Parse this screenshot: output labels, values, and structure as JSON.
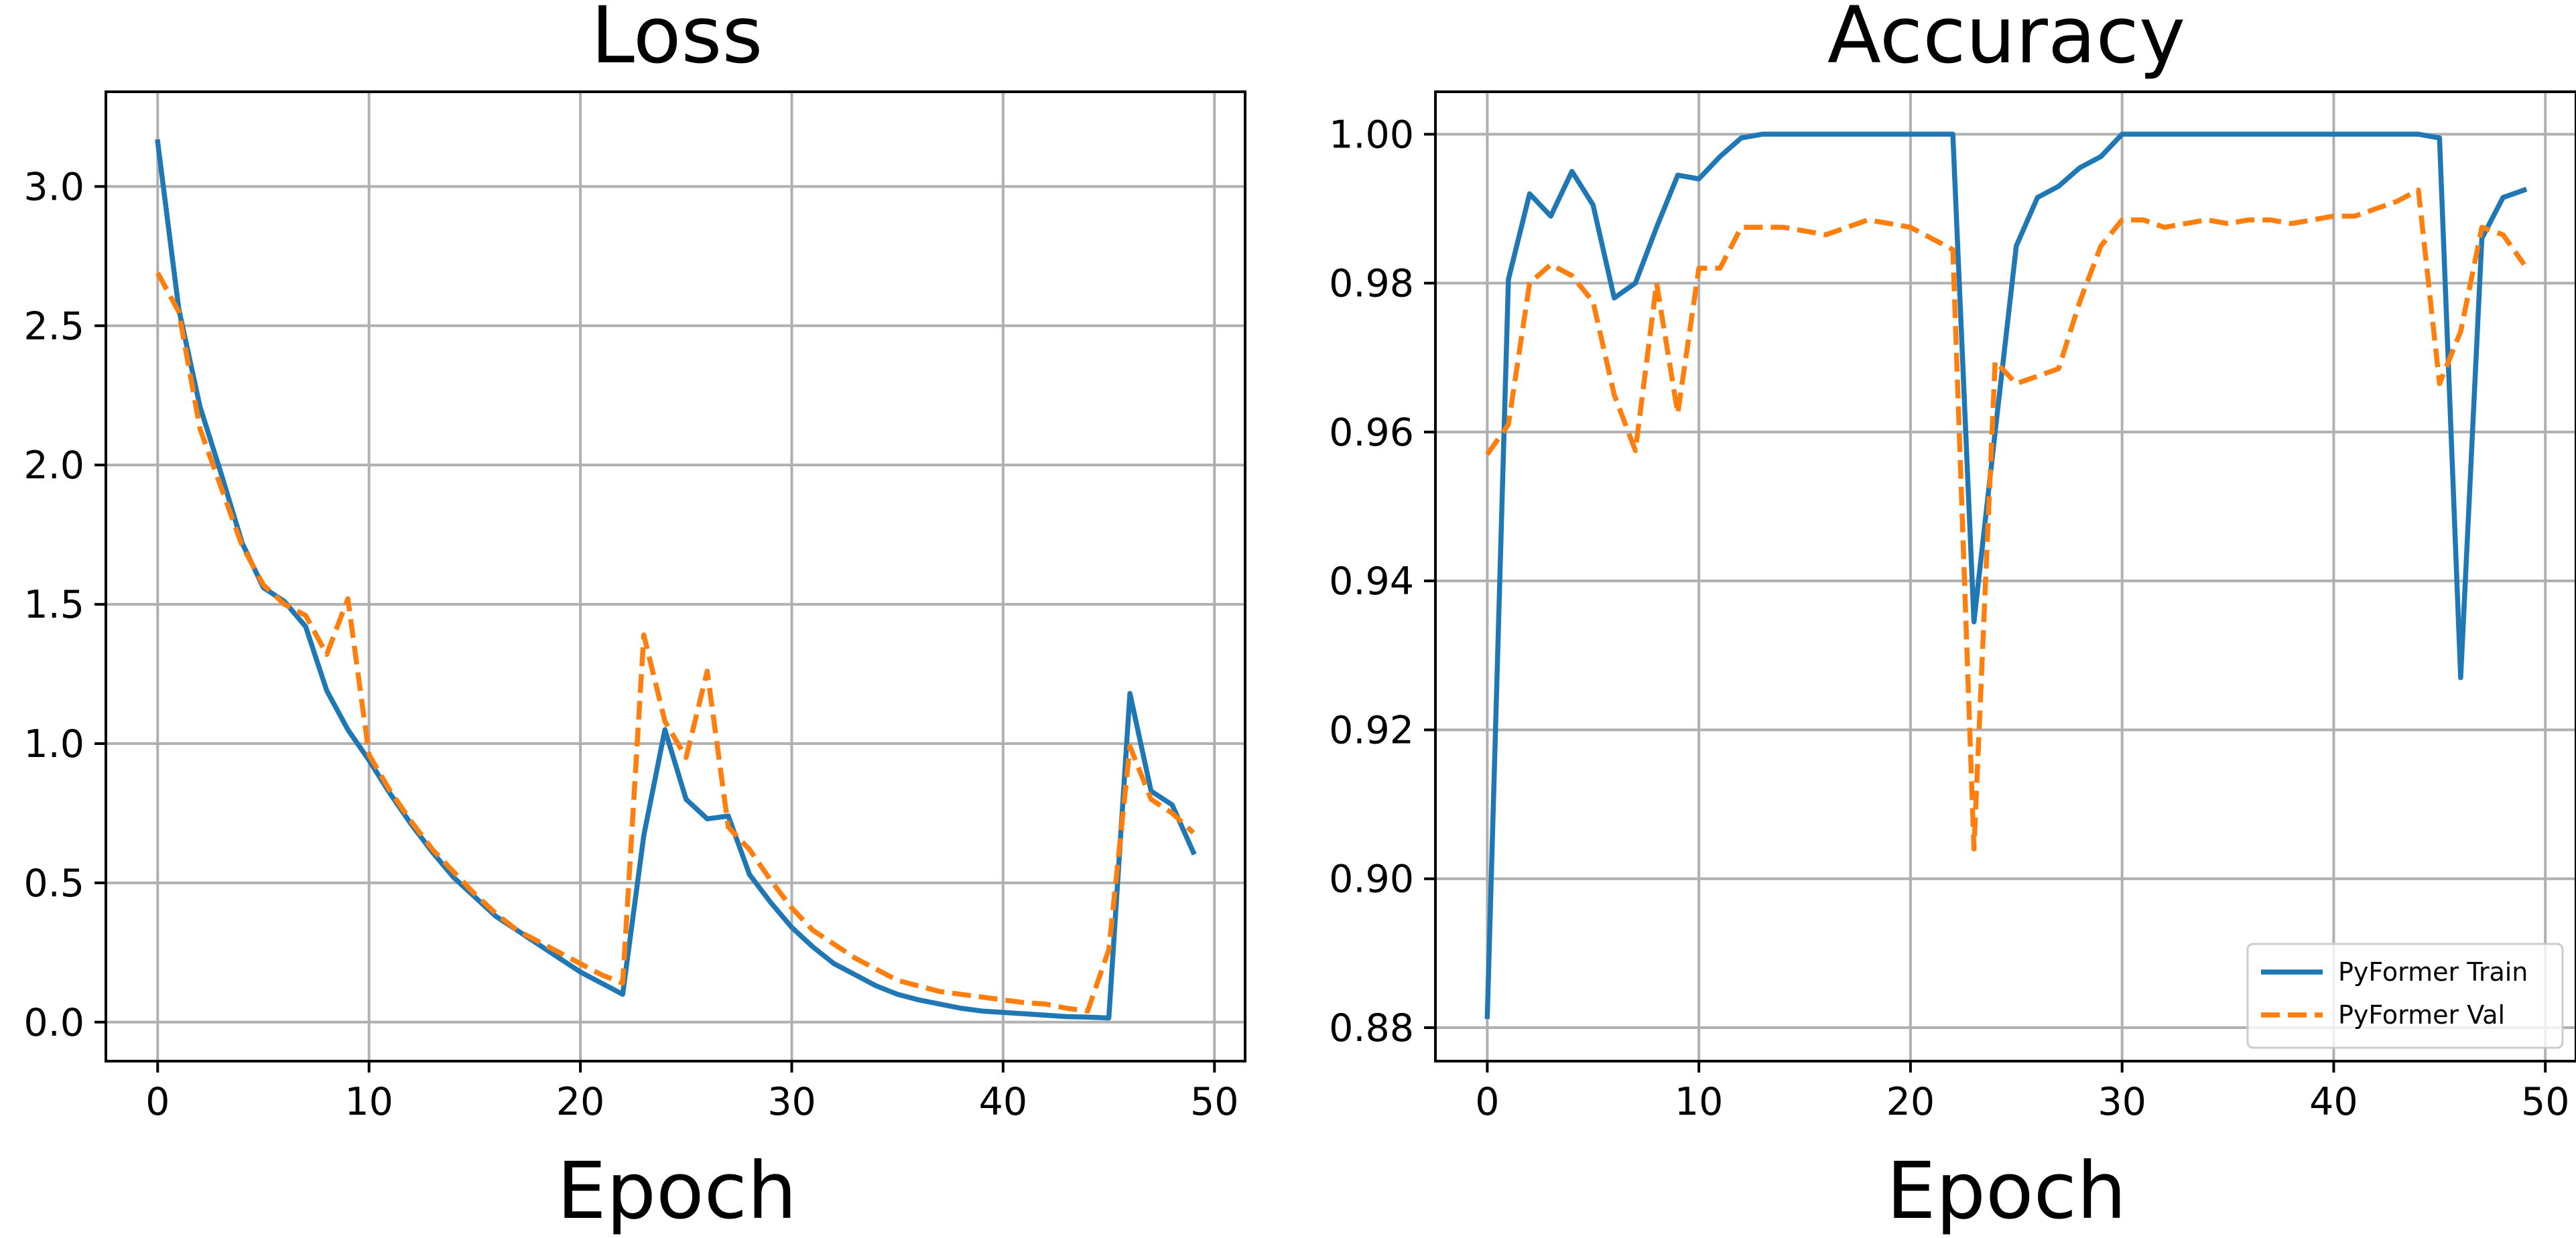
{
  "colors": {
    "train": "#1f77b4",
    "val": "#ff7f0e",
    "grid": "#b0b0b0"
  },
  "chart_data": [
    {
      "type": "line",
      "title": "Loss",
      "xlabel": "Epoch",
      "ylabel": "",
      "xlim": [
        -2.45,
        51.45
      ],
      "ylim": [
        -0.14,
        3.34
      ],
      "xticks": [
        0,
        10,
        20,
        30,
        40,
        50
      ],
      "yticks": [
        0.0,
        0.5,
        1.0,
        1.5,
        2.0,
        2.5,
        3.0
      ],
      "xtick_labels": [
        "0",
        "10",
        "20",
        "30",
        "40",
        "50"
      ],
      "ytick_labels": [
        "0.0",
        "0.5",
        "1.0",
        "1.5",
        "2.0",
        "2.5",
        "3.0"
      ],
      "grid": true,
      "legend": false,
      "x": [
        0,
        1,
        2,
        3,
        4,
        5,
        6,
        7,
        8,
        9,
        10,
        11,
        12,
        13,
        14,
        15,
        16,
        17,
        18,
        19,
        20,
        21,
        22,
        23,
        24,
        25,
        26,
        27,
        28,
        29,
        30,
        31,
        32,
        33,
        34,
        35,
        36,
        37,
        38,
        39,
        40,
        41,
        42,
        43,
        44,
        45,
        46,
        47,
        48,
        49
      ],
      "series": [
        {
          "name": "PyFormer Train",
          "style": "solid",
          "color_key": "train",
          "values": [
            3.16,
            2.56,
            2.21,
            1.97,
            1.72,
            1.56,
            1.51,
            1.42,
            1.19,
            1.05,
            0.94,
            0.82,
            0.71,
            0.61,
            0.52,
            0.45,
            0.38,
            0.33,
            0.28,
            0.23,
            0.18,
            0.14,
            0.1,
            0.67,
            1.05,
            0.8,
            0.73,
            0.74,
            0.53,
            0.43,
            0.34,
            0.27,
            0.21,
            0.17,
            0.13,
            0.1,
            0.08,
            0.065,
            0.05,
            0.04,
            0.035,
            0.03,
            0.025,
            0.02,
            0.018,
            0.015,
            1.18,
            0.83,
            0.78,
            0.61
          ]
        },
        {
          "name": "PyFormer Val",
          "style": "dashed",
          "color_key": "val",
          "values": [
            2.69,
            2.55,
            2.13,
            1.92,
            1.71,
            1.57,
            1.5,
            1.46,
            1.32,
            1.52,
            0.96,
            0.83,
            0.72,
            0.62,
            0.54,
            0.46,
            0.39,
            0.33,
            0.29,
            0.25,
            0.21,
            0.17,
            0.14,
            1.39,
            1.08,
            0.95,
            1.26,
            0.7,
            0.62,
            0.51,
            0.41,
            0.33,
            0.28,
            0.23,
            0.19,
            0.15,
            0.13,
            0.11,
            0.1,
            0.09,
            0.08,
            0.07,
            0.065,
            0.05,
            0.04,
            0.26,
            0.99,
            0.8,
            0.75,
            0.68
          ]
        }
      ]
    },
    {
      "type": "line",
      "title": "Accuracy",
      "xlabel": "Epoch",
      "ylabel": "",
      "xlim": [
        -2.45,
        51.45
      ],
      "ylim": [
        0.8755,
        1.0057
      ],
      "xticks": [
        0,
        10,
        20,
        30,
        40,
        50
      ],
      "yticks": [
        0.88,
        0.9,
        0.92,
        0.94,
        0.96,
        0.98,
        1.0
      ],
      "xtick_labels": [
        "0",
        "10",
        "20",
        "30",
        "40",
        "50"
      ],
      "ytick_labels": [
        "0.88",
        "0.90",
        "0.92",
        "0.94",
        "0.96",
        "0.98",
        "1.00"
      ],
      "grid": true,
      "legend": true,
      "legend_position": "lower-right",
      "x": [
        0,
        1,
        2,
        3,
        4,
        5,
        6,
        7,
        8,
        9,
        10,
        11,
        12,
        13,
        14,
        15,
        16,
        17,
        18,
        19,
        20,
        21,
        22,
        23,
        24,
        25,
        26,
        27,
        28,
        29,
        30,
        31,
        32,
        33,
        34,
        35,
        36,
        37,
        38,
        39,
        40,
        41,
        42,
        43,
        44,
        45,
        46,
        47,
        48,
        49
      ],
      "series": [
        {
          "name": "PyFormer Train",
          "style": "solid",
          "color_key": "train",
          "values": [
            0.8815,
            0.9805,
            0.992,
            0.989,
            0.995,
            0.9905,
            0.978,
            0.98,
            0.9875,
            0.9945,
            0.994,
            0.997,
            0.9995,
            1.0,
            1.0,
            1.0,
            1.0,
            1.0,
            1.0,
            1.0,
            1.0,
            1.0,
            1.0,
            0.9345,
            0.96,
            0.985,
            0.9915,
            0.993,
            0.9955,
            0.997,
            1.0,
            1.0,
            1.0,
            1.0,
            1.0,
            1.0,
            1.0,
            1.0,
            1.0,
            1.0,
            1.0,
            1.0,
            1.0,
            1.0,
            1.0,
            0.9995,
            0.927,
            0.986,
            0.9915,
            0.9925
          ]
        },
        {
          "name": "PyFormer Val",
          "style": "dashed",
          "color_key": "val",
          "values": [
            0.957,
            0.961,
            0.98,
            0.9825,
            0.981,
            0.9775,
            0.965,
            0.9575,
            0.98,
            0.9625,
            0.982,
            0.982,
            0.9875,
            0.9875,
            0.9875,
            0.987,
            0.9865,
            0.9875,
            0.9885,
            0.988,
            0.9875,
            0.986,
            0.9845,
            0.904,
            0.9695,
            0.9665,
            0.9675,
            0.9685,
            0.9775,
            0.985,
            0.9885,
            0.9885,
            0.9875,
            0.988,
            0.9885,
            0.988,
            0.9885,
            0.9885,
            0.988,
            0.9885,
            0.989,
            0.989,
            0.99,
            0.991,
            0.9925,
            0.9665,
            0.9735,
            0.9875,
            0.9865,
            0.9825
          ]
        }
      ]
    }
  ]
}
